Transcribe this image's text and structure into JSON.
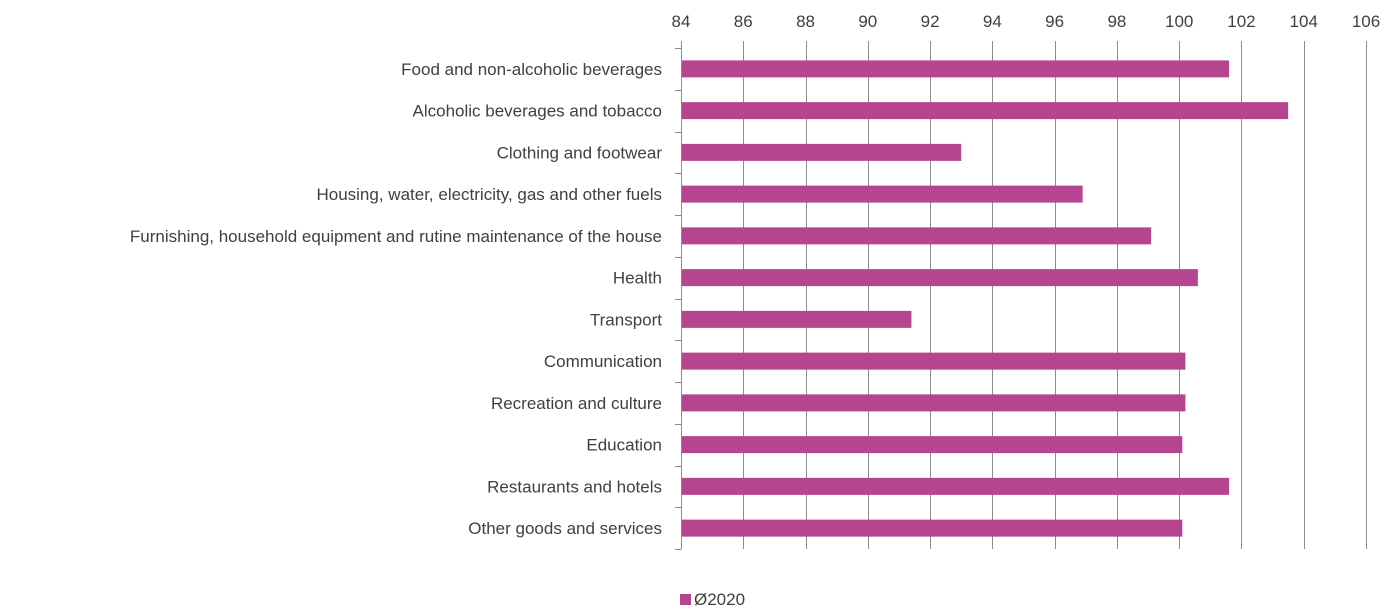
{
  "chart_data": {
    "type": "bar",
    "orientation": "horizontal",
    "categories": [
      "Food and non-alcoholic beverages",
      "Alcoholic beverages and tobacco",
      "Clothing and footwear",
      "Housing, water, electricity, gas and other fuels",
      "Furnishing, household equipment and rutine maintenance of the house",
      "Health",
      "Transport",
      "Communication",
      "Recreation and culture",
      "Education",
      "Restaurants and hotels",
      "Other goods and services"
    ],
    "series": [
      {
        "name": "Ø2020",
        "color": "#b5458f",
        "values": [
          101.6,
          103.5,
          93.0,
          96.9,
          99.1,
          100.6,
          91.4,
          100.2,
          100.2,
          100.1,
          101.6,
          100.1
        ]
      }
    ],
    "xlim": [
      84,
      106
    ],
    "xticks": [
      84,
      86,
      88,
      90,
      92,
      94,
      96,
      98,
      100,
      102,
      104,
      106
    ],
    "xaxis_position": "top",
    "grid": "vertical",
    "legend_position": "bottom-center",
    "title": "",
    "xlabel": "",
    "ylabel": ""
  }
}
